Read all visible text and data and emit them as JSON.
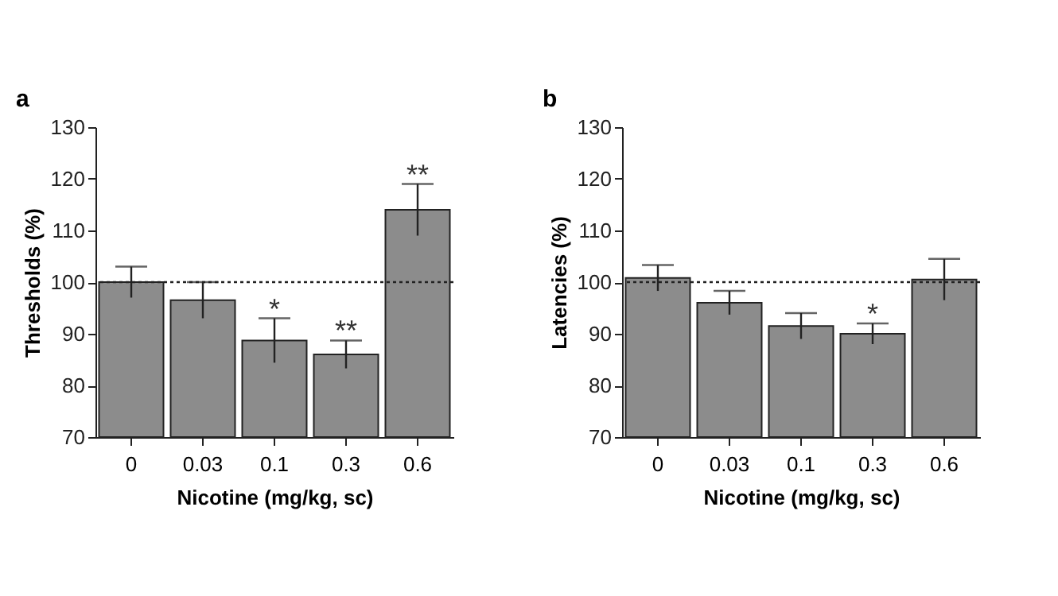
{
  "chart_data": [
    {
      "type": "bar",
      "title": "a",
      "xlabel": "Nicotine (mg/kg, sc)",
      "ylabel": "Thresholds (%)",
      "categories": [
        "0",
        "0.03",
        "0.1",
        "0.3",
        "0.6"
      ],
      "values": [
        100,
        96.5,
        88.7,
        86,
        114
      ],
      "errors": [
        3,
        3.5,
        4.3,
        2.7,
        5
      ],
      "color": "#8c8c8c",
      "ylim": [
        70,
        130
      ],
      "yticks": [
        70,
        80,
        90,
        100,
        110,
        120,
        130
      ],
      "grid": false,
      "ref_lines": [
        {
          "axis": "y",
          "value": 100,
          "line_style": "dotted"
        }
      ],
      "annotations": [
        {
          "text": "*",
          "x": "0.1",
          "y": 93
        },
        {
          "text": "**",
          "x": "0.3",
          "y": 88.7
        },
        {
          "text": "**",
          "x": "0.6",
          "y": 119
        }
      ]
    },
    {
      "type": "bar",
      "title": "b",
      "xlabel": "Nicotine (mg/kg, sc)",
      "ylabel": "Latencies (%)",
      "categories": [
        "0",
        "0.03",
        "0.1",
        "0.3",
        "0.6"
      ],
      "values": [
        100.8,
        96,
        91.5,
        90,
        100.5
      ],
      "errors": [
        2.5,
        2.3,
        2.5,
        2,
        4
      ],
      "color": "#8c8c8c",
      "ylim": [
        70,
        130
      ],
      "yticks": [
        70,
        80,
        90,
        100,
        110,
        120,
        130
      ],
      "grid": false,
      "ref_lines": [
        {
          "axis": "y",
          "value": 100,
          "line_style": "dotted"
        }
      ],
      "annotations": [
        {
          "text": "*",
          "x": "0.3",
          "y": 92
        }
      ]
    }
  ]
}
